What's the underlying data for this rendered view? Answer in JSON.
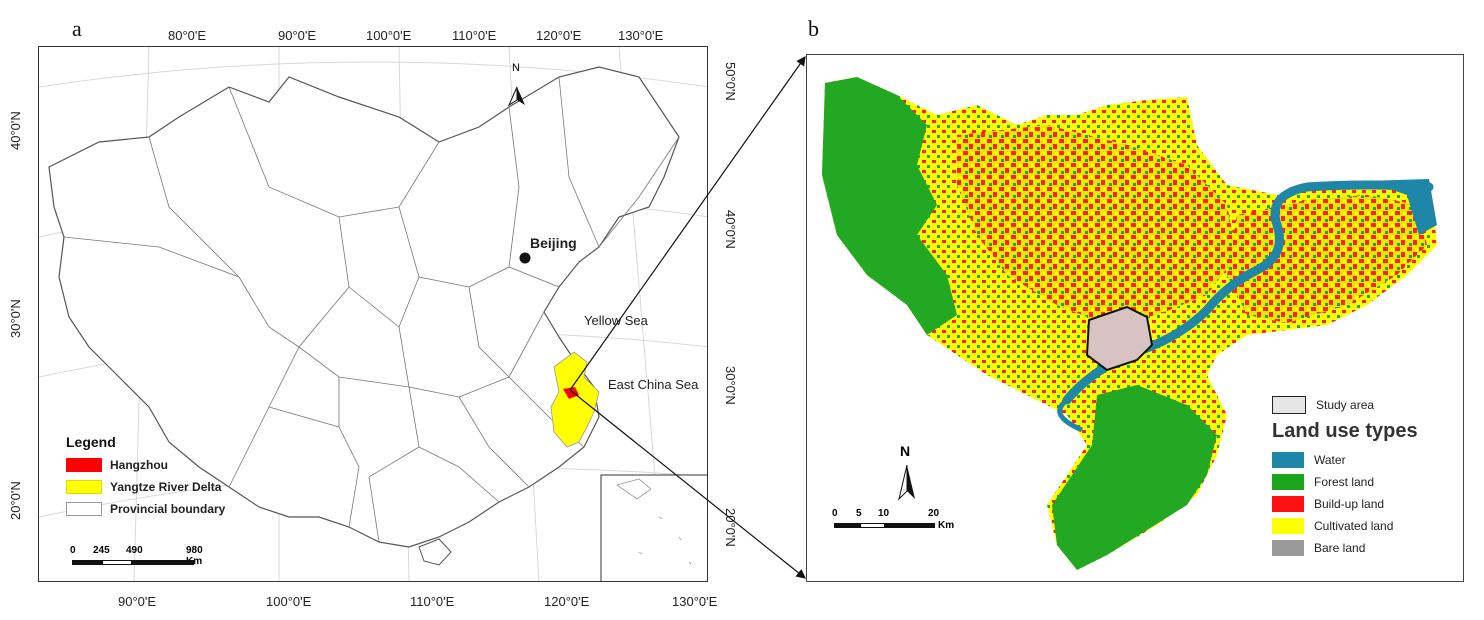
{
  "panel_a": {
    "letter": "a",
    "top_lon_labels": [
      "80°0'E",
      "90°0'E",
      "100°0'E",
      "110°0'E",
      "120°0'E",
      "130°0'E"
    ],
    "bottom_lon_labels": [
      "90°0'E",
      "100°0'E",
      "110°0'E",
      "120°0'E",
      "130°0'E"
    ],
    "left_lat_labels": [
      "40°0'N",
      "30°0'N",
      "20°0'N"
    ],
    "right_lat_labels": [
      "50°0'N",
      "40°0'N",
      "30°0'N",
      "20°0'N"
    ],
    "north_label": "N",
    "places": {
      "beijing": "Beijing",
      "yellow_sea": "Yellow Sea",
      "east_china_sea": "East China Sea"
    },
    "legend": {
      "title": "Legend",
      "items": [
        {
          "label": "Hangzhou",
          "color": "#ff0000"
        },
        {
          "label": "Yangtze River Delta",
          "color": "#ffff00"
        },
        {
          "label": "Provincial boundary",
          "color": "#ffffff"
        }
      ]
    },
    "scale": {
      "ticks": [
        "0",
        "245",
        "490",
        "980 Km"
      ]
    }
  },
  "panel_b": {
    "letter": "b",
    "north_label": "N",
    "scale": {
      "ticks": [
        "0",
        "5",
        "10",
        "20"
      ],
      "unit": "Km"
    },
    "study_area_label": "Study area",
    "legend_title": "Land use types",
    "legend_items": [
      {
        "label": "Water",
        "color": "#1f86a8"
      },
      {
        "label": "Forest land",
        "color": "#1aa51a"
      },
      {
        "label": "Build-up land",
        "color": "#ff1010"
      },
      {
        "label": "Cultivated land",
        "color": "#ffff00"
      },
      {
        "label": "Bare land",
        "color": "#9a9a9a"
      }
    ]
  }
}
